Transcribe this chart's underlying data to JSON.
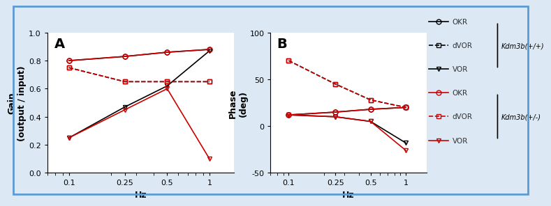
{
  "hz": [
    0.1,
    0.25,
    0.5,
    1.0
  ],
  "panel_A": {
    "title": "A",
    "ylabel": "Gain\n(output / input)",
    "xlabel": "Hz",
    "ylim": [
      0.0,
      1.0
    ],
    "yticks": [
      0.0,
      0.2,
      0.4,
      0.6,
      0.8,
      1.0
    ],
    "xticks": [
      0.1,
      0.25,
      0.5,
      1.0
    ],
    "xticklabels": [
      "0.1",
      "0.25",
      "0.5",
      "1"
    ],
    "series": {
      "wt_OKR": {
        "y": [
          0.8,
          0.83,
          0.86,
          0.88
        ],
        "color": "#000000",
        "marker": "o",
        "linestyle": "-"
      },
      "wt_dVOR": {
        "y": [
          0.75,
          0.65,
          0.65,
          0.65
        ],
        "color": "#000000",
        "marker": "s",
        "linestyle": "--"
      },
      "wt_VOR": {
        "y": [
          0.25,
          0.47,
          0.62,
          0.87
        ],
        "color": "#000000",
        "marker": "v",
        "linestyle": "-"
      },
      "het_OKR": {
        "y": [
          0.8,
          0.83,
          0.86,
          0.88
        ],
        "color": "#cc0000",
        "marker": "o",
        "linestyle": "-"
      },
      "het_dVOR": {
        "y": [
          0.75,
          0.65,
          0.65,
          0.65
        ],
        "color": "#cc0000",
        "marker": "s",
        "linestyle": "--"
      },
      "het_VOR": {
        "y": [
          0.25,
          0.45,
          0.6,
          0.1
        ],
        "color": "#cc0000",
        "marker": "v",
        "linestyle": "-"
      }
    }
  },
  "panel_B": {
    "title": "B",
    "ylabel": "Phase\n(deg)",
    "xlabel": "Hz",
    "ylim": [
      -50,
      100
    ],
    "yticks": [
      -50,
      0,
      50,
      100
    ],
    "xticks": [
      0.1,
      0.25,
      0.5,
      1.0
    ],
    "xticklabels": [
      "0.1",
      "0.25",
      "0.5",
      "1"
    ],
    "series": {
      "wt_OKR": {
        "y": [
          12,
          15,
          18,
          20
        ],
        "color": "#000000",
        "marker": "o",
        "linestyle": "-"
      },
      "wt_dVOR": {
        "y": [
          70,
          45,
          28,
          20
        ],
        "color": "#000000",
        "marker": "s",
        "linestyle": "--"
      },
      "wt_VOR": {
        "y": [
          12,
          10,
          5,
          -18
        ],
        "color": "#000000",
        "marker": "v",
        "linestyle": "-"
      },
      "het_OKR": {
        "y": [
          12,
          15,
          18,
          20
        ],
        "color": "#cc0000",
        "marker": "o",
        "linestyle": "-"
      },
      "het_dVOR": {
        "y": [
          70,
          45,
          28,
          20
        ],
        "color": "#cc0000",
        "marker": "s",
        "linestyle": "--"
      },
      "het_VOR": {
        "y": [
          12,
          10,
          5,
          -26
        ],
        "color": "#cc0000",
        "marker": "v",
        "linestyle": "-"
      }
    }
  },
  "legend": {
    "wt_labels": [
      "OKR",
      "dVOR",
      "VOR"
    ],
    "het_labels": [
      "OKR",
      "dVOR",
      "VOR"
    ],
    "wt_group": "Kdm3b(+/+)",
    "het_group": "Kdm3b(+/-)"
  },
  "background_color": "#dce9f5",
  "plot_bg": "#ffffff",
  "border_color": "#5b9bd5"
}
